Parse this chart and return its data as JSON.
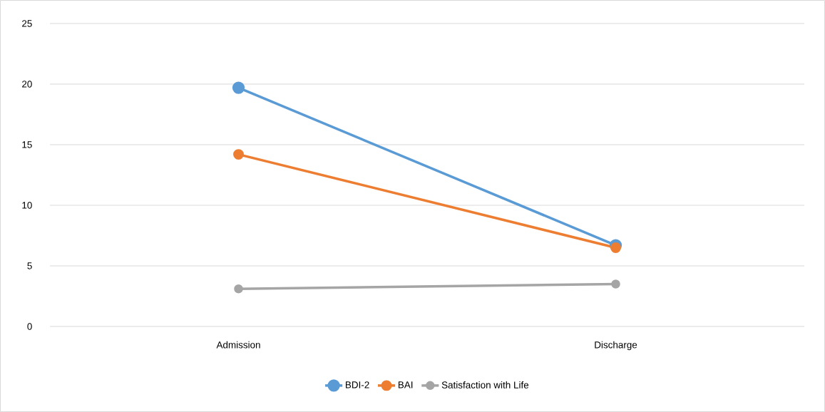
{
  "chart_data": {
    "type": "line",
    "categories": [
      "Admission",
      "Discharge"
    ],
    "series": [
      {
        "name": "BDI-2",
        "color": "#5b9bd5",
        "values": [
          19.7,
          6.7
        ]
      },
      {
        "name": "BAI",
        "color": "#ed7d31",
        "values": [
          14.2,
          6.5
        ]
      },
      {
        "name": "Satisfaction with Life",
        "color": "#a5a5a5",
        "values": [
          3.1,
          3.5
        ]
      }
    ],
    "ylim": [
      0,
      25
    ],
    "yticks": [
      0,
      5,
      10,
      15,
      20,
      25
    ],
    "grid": "y",
    "legend": "bottom",
    "marker": "circle",
    "line_style": "solid"
  }
}
